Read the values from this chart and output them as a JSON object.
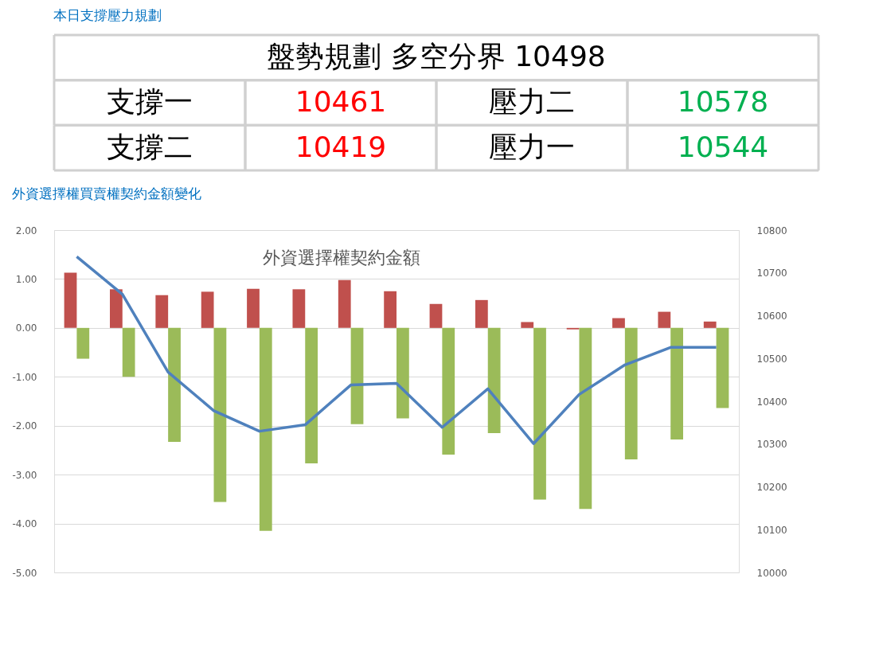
{
  "chart_data": [
    {
      "type": "other",
      "title": "本日支撐壓力規劃",
      "subtitle": "盤勢規劃 多空分界 10498",
      "categories": [
        "支撐一",
        "壓力二",
        "支撐二",
        "壓力一"
      ],
      "data_labels": true,
      "series": [
        {
          "color": "#ff0000",
          "values": [
            10461,
            null,
            10419,
            null
          ]
        },
        {
          "color": "#00b050",
          "values": [
            null,
            10578,
            null,
            10544
          ]
        }
      ]
    },
    {
      "type": "bar",
      "title": "外資選擇權買賣權契約金額變化",
      "subtitle": "外資選擇權契約金額",
      "categories": [
        null,
        null,
        null,
        null,
        null,
        null,
        null,
        null,
        null,
        null,
        null,
        null,
        null,
        null,
        null
      ],
      "series": [
        {
          "color": "#c0504d",
          "values": [
            1.13,
            0.79,
            0.67,
            0.74,
            0.8,
            0.79,
            0.98,
            0.75,
            0.49,
            0.57,
            0.12,
            -0.03,
            0.2,
            0.33,
            0.13
          ]
        },
        {
          "color": "#9bbb59",
          "values": [
            -0.63,
            -1.0,
            -2.33,
            -3.56,
            -4.15,
            -2.77,
            -1.97,
            -1.85,
            -2.59,
            -2.15,
            -3.51,
            -3.7,
            -2.69,
            -2.28,
            -1.64
          ]
        },
        {
          "type": "line",
          "axis": "y2",
          "color": "#4f81bd",
          "values": [
            10738,
            10650,
            10468,
            10378,
            10330,
            10345,
            10438,
            10442,
            10339,
            10429,
            10301,
            10416,
            10485,
            10526,
            10526
          ]
        }
      ],
      "ylim": [
        -5,
        2
      ],
      "yticks": [
        {
          "value": 2,
          "label": "2.00"
        },
        {
          "value": 1,
          "label": "1.00"
        },
        {
          "value": 0,
          "label": "0.00"
        },
        {
          "value": -1,
          "label": "-1.00"
        },
        {
          "value": -2,
          "label": "-2.00"
        },
        {
          "value": -3,
          "label": "-3.00"
        },
        {
          "value": -4,
          "label": "-4.00"
        },
        {
          "value": -5,
          "label": "-5.00"
        }
      ],
      "y2lim": [
        10000,
        10800
      ],
      "y2ticks": [
        10000,
        10100,
        10200,
        10300,
        10400,
        10500,
        10600,
        10700,
        10800
      ],
      "grid": "y"
    }
  ]
}
